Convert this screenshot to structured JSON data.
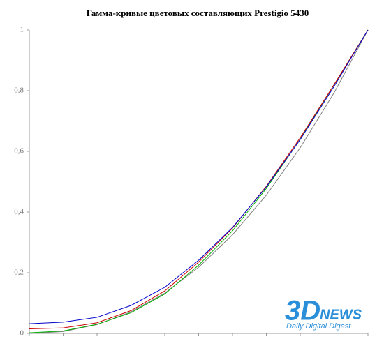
{
  "chart_data": {
    "type": "line",
    "title": "Гамма-кривые цветовых составляющих  Prestigio 5430",
    "categories": [
      null,
      null,
      null,
      null,
      null,
      null,
      null,
      null,
      null,
      null,
      null
    ],
    "series": [
      {
        "color": "#808080",
        "values": [
          0,
          0.006,
          0.029,
          0.071,
          0.133,
          0.218,
          0.325,
          0.456,
          0.612,
          0.793,
          1
        ]
      },
      {
        "color": "#00b000",
        "values": [
          0.002,
          0.008,
          0.03,
          0.068,
          0.13,
          0.225,
          0.338,
          0.478,
          0.64,
          0.82,
          1
        ]
      },
      {
        "color": "#cc0000",
        "values": [
          0.015,
          0.018,
          0.035,
          0.075,
          0.14,
          0.235,
          0.347,
          0.485,
          0.645,
          0.82,
          1
        ]
      },
      {
        "color": "#0000cc",
        "values": [
          0.032,
          0.037,
          0.053,
          0.092,
          0.152,
          0.241,
          0.349,
          0.483,
          0.639,
          0.814,
          1
        ]
      }
    ],
    "ylim": [
      0,
      1
    ],
    "yticks": [
      0,
      {
        "value": 0.2,
        "label": "0,2"
      },
      {
        "value": 0.4,
        "label": "0,4"
      },
      {
        "value": 0.6,
        "label": "0,6"
      },
      {
        "value": 0.8,
        "label": "0,8"
      },
      1
    ],
    "grid": false
  },
  "logo": {
    "main": "3D",
    "accent": "NEWS",
    "tagline": "Daily Digital Digest"
  }
}
